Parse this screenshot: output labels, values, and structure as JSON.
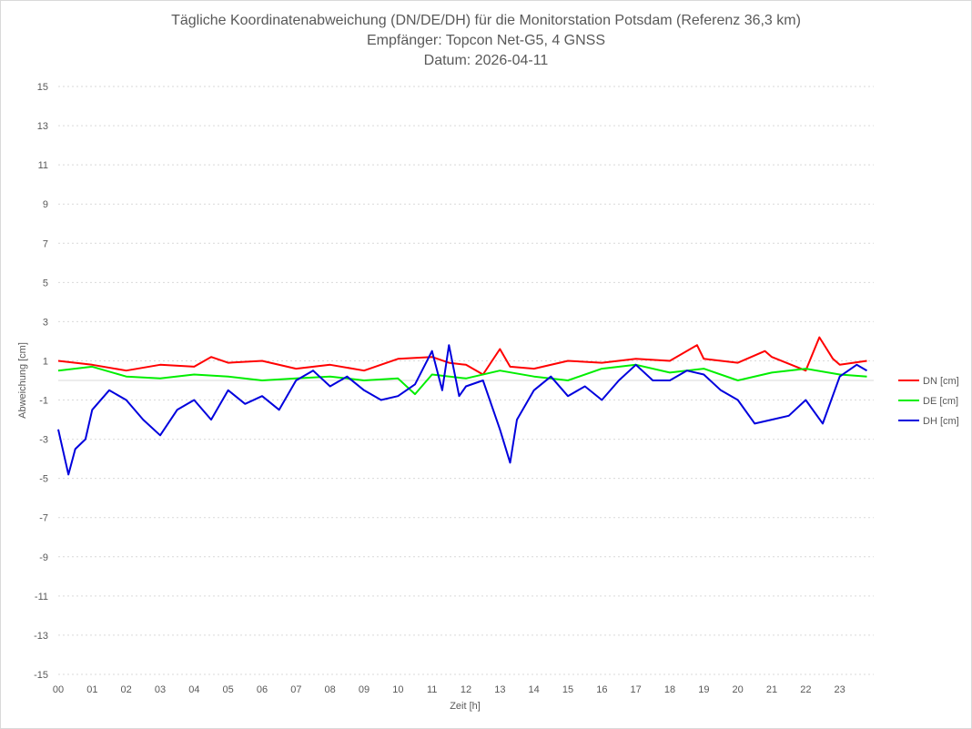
{
  "chart_data": {
    "type": "line",
    "title": "Tägliche Koordinatenabweichung (DN/DE/DH) für die Monitorstation Potsdam (Referenz 36,3 km)",
    "subtitle": "Empfänger: Topcon Net-G5, 4 GNSS",
    "date_line": "Datum: 2026-04-11",
    "xlabel": "Zeit [h]",
    "ylabel": "Abweichung [cm]",
    "ylim": [
      -15,
      15
    ],
    "xlim": [
      0,
      24
    ],
    "yticks": [
      "15",
      "13",
      "11",
      "9",
      "7",
      "5",
      "3",
      "1",
      "-1",
      "-3",
      "-5",
      "-7",
      "-9",
      "-11",
      "-13",
      "-15"
    ],
    "xticks": [
      "00",
      "01",
      "02",
      "03",
      "04",
      "05",
      "06",
      "07",
      "08",
      "09",
      "10",
      "11",
      "12",
      "13",
      "14",
      "15",
      "16",
      "17",
      "18",
      "19",
      "20",
      "21",
      "22",
      "23"
    ],
    "grid": true,
    "legend_position": "right",
    "series": [
      {
        "name": "DN [cm]",
        "color": "#ff0000",
        "x": [
          0,
          1,
          2,
          3,
          4,
          4.5,
          5,
          6,
          7,
          8,
          9,
          10,
          11,
          11.5,
          12,
          12.5,
          13,
          13.3,
          14,
          15,
          16,
          17,
          18,
          18.8,
          19,
          20,
          20.8,
          21,
          22,
          22.4,
          22.8,
          23,
          23.8
        ],
        "values": [
          1.0,
          0.8,
          0.5,
          0.8,
          0.7,
          1.2,
          0.9,
          1.0,
          0.6,
          0.8,
          0.5,
          1.1,
          1.2,
          0.9,
          0.8,
          0.3,
          1.6,
          0.7,
          0.6,
          1.0,
          0.9,
          1.1,
          1.0,
          1.8,
          1.1,
          0.9,
          1.5,
          1.2,
          0.5,
          2.2,
          1.1,
          0.8,
          1.0
        ]
      },
      {
        "name": "DE [cm]",
        "color": "#00ee00",
        "x": [
          0,
          1,
          2,
          3,
          4,
          5,
          6,
          7,
          8,
          9,
          10,
          10.5,
          11,
          12,
          13,
          14,
          15,
          16,
          17,
          18,
          19,
          20,
          21,
          22,
          23,
          23.8
        ],
        "values": [
          0.5,
          0.7,
          0.2,
          0.1,
          0.3,
          0.2,
          0.0,
          0.1,
          0.2,
          0.0,
          0.1,
          -0.7,
          0.3,
          0.1,
          0.5,
          0.2,
          0.0,
          0.6,
          0.8,
          0.4,
          0.6,
          0.0,
          0.4,
          0.6,
          0.3,
          0.2
        ]
      },
      {
        "name": "DH [cm]",
        "color": "#0000dd",
        "x": [
          0,
          0.3,
          0.5,
          0.8,
          1.0,
          1.5,
          2.0,
          2.5,
          3.0,
          3.5,
          4.0,
          4.5,
          5.0,
          5.5,
          6.0,
          6.5,
          7.0,
          7.5,
          8.0,
          8.5,
          9.0,
          9.5,
          10.0,
          10.5,
          11.0,
          11.3,
          11.5,
          11.8,
          12.0,
          12.5,
          13.0,
          13.3,
          13.5,
          14.0,
          14.5,
          15.0,
          15.5,
          16.0,
          16.5,
          17.0,
          17.5,
          18.0,
          18.5,
          19.0,
          19.5,
          20.0,
          20.5,
          21.0,
          21.5,
          22.0,
          22.5,
          23.0,
          23.5,
          23.8
        ],
        "values": [
          -2.5,
          -4.8,
          -3.5,
          -3.0,
          -1.5,
          -0.5,
          -1.0,
          -2.0,
          -2.8,
          -1.5,
          -1.0,
          -2.0,
          -0.5,
          -1.2,
          -0.8,
          -1.5,
          0.0,
          0.5,
          -0.3,
          0.2,
          -0.5,
          -1.0,
          -0.8,
          -0.2,
          1.5,
          -0.5,
          1.8,
          -0.8,
          -0.3,
          0.0,
          -2.5,
          -4.2,
          -2.0,
          -0.5,
          0.2,
          -0.8,
          -0.3,
          -1.0,
          0.0,
          0.8,
          0.0,
          0.0,
          0.5,
          0.3,
          -0.5,
          -1.0,
          -2.2,
          -2.0,
          -1.8,
          -1.0,
          -2.2,
          0.2,
          0.8,
          0.5
        ]
      }
    ]
  }
}
